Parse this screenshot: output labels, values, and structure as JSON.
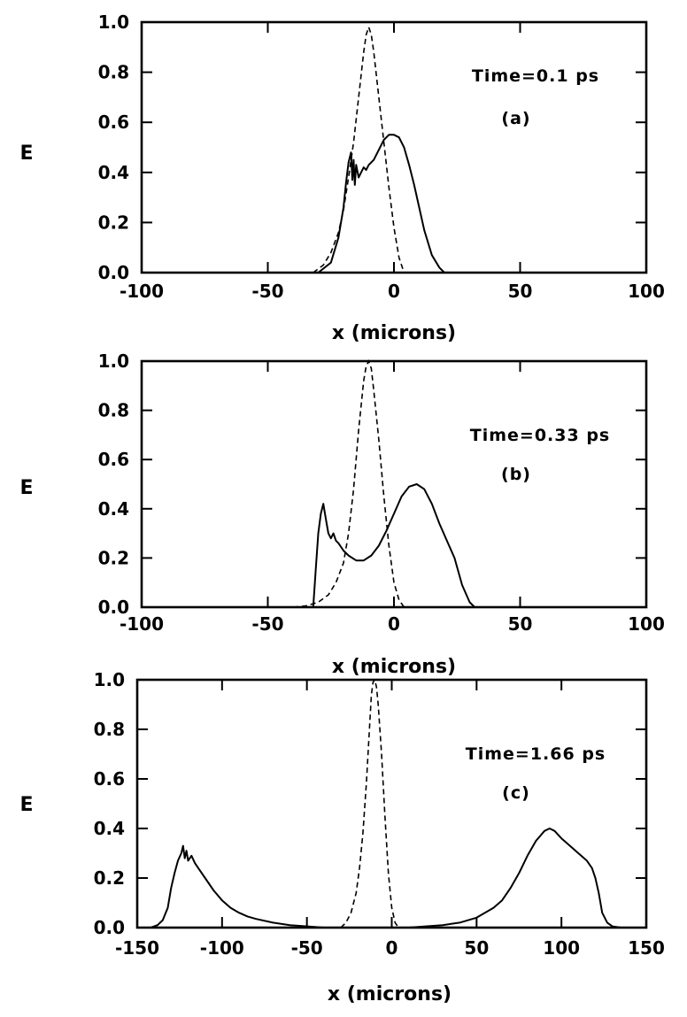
{
  "chart_data": [
    {
      "type": "line",
      "panel_label": "(a)",
      "annotation": "Time=0.1 ps",
      "xlabel": "x (microns)",
      "ylabel": "E",
      "xlim": [
        -100,
        100
      ],
      "ylim": [
        0,
        1.0
      ],
      "xticks": [
        -100,
        -50,
        0,
        50,
        100
      ],
      "xtick_labels": [
        "-100",
        "-50",
        "0",
        "50",
        "100"
      ],
      "yticks": [
        0,
        0.2,
        0.4,
        0.6,
        0.8,
        1.0
      ],
      "ytick_labels": [
        "0.0",
        "0.2",
        "0.4",
        "0.6",
        "0.8",
        "1.0"
      ],
      "grid": false,
      "series": [
        {
          "style": "dashed",
          "x": [
            -32,
            -28,
            -25,
            -22,
            -20,
            -18,
            -16,
            -14,
            -12,
            -11,
            -10,
            -9,
            -8,
            -6,
            -4,
            -2,
            0,
            2,
            4
          ],
          "y": [
            0.0,
            0.03,
            0.08,
            0.16,
            0.25,
            0.38,
            0.52,
            0.7,
            0.88,
            0.95,
            0.98,
            0.95,
            0.88,
            0.7,
            0.52,
            0.34,
            0.18,
            0.06,
            0.0
          ]
        },
        {
          "style": "solid",
          "x": [
            -30,
            -25,
            -22,
            -20,
            -19,
            -18,
            -17,
            -16.5,
            -16,
            -15.5,
            -15,
            -14,
            -13,
            -12,
            -11,
            -10,
            -8,
            -6,
            -4,
            -2,
            0,
            2,
            4,
            6,
            8,
            10,
            12,
            15,
            18,
            20
          ],
          "y": [
            0.0,
            0.04,
            0.14,
            0.26,
            0.36,
            0.44,
            0.48,
            0.37,
            0.45,
            0.35,
            0.43,
            0.38,
            0.4,
            0.42,
            0.41,
            0.43,
            0.45,
            0.49,
            0.53,
            0.55,
            0.55,
            0.54,
            0.5,
            0.43,
            0.35,
            0.26,
            0.17,
            0.07,
            0.02,
            0.0
          ]
        }
      ]
    },
    {
      "type": "line",
      "panel_label": "(b)",
      "annotation": "Time=0.33 ps",
      "xlabel": "x (microns)",
      "ylabel": "E",
      "xlim": [
        -100,
        100
      ],
      "ylim": [
        0,
        1.0
      ],
      "xticks": [
        -100,
        -50,
        0,
        50,
        100
      ],
      "xtick_labels": [
        "-100",
        "-50",
        "0",
        "50",
        "100"
      ],
      "yticks": [
        0,
        0.2,
        0.4,
        0.6,
        0.8,
        1.0
      ],
      "ytick_labels": [
        "0.0",
        "0.2",
        "0.4",
        "0.6",
        "0.8",
        "1.0"
      ],
      "grid": false,
      "series": [
        {
          "style": "dashed",
          "x": [
            -40,
            -35,
            -30,
            -26,
            -23,
            -20,
            -18,
            -16,
            -14,
            -12,
            -11,
            -10,
            -9,
            -8,
            -6,
            -4,
            -2,
            0,
            2,
            4
          ],
          "y": [
            0.0,
            0.005,
            0.02,
            0.05,
            0.1,
            0.18,
            0.3,
            0.48,
            0.72,
            0.92,
            0.98,
            1.0,
            0.97,
            0.88,
            0.68,
            0.45,
            0.25,
            0.1,
            0.03,
            0.0
          ]
        },
        {
          "style": "solid",
          "x": [
            -32,
            -31,
            -30,
            -29,
            -28,
            -27,
            -26,
            -25,
            -24,
            -23,
            -22,
            -20,
            -18,
            -15,
            -12,
            -9,
            -6,
            -3,
            0,
            3,
            6,
            9,
            12,
            15,
            18,
            21,
            24,
            27,
            30,
            32
          ],
          "y": [
            0.0,
            0.15,
            0.3,
            0.38,
            0.42,
            0.36,
            0.3,
            0.28,
            0.3,
            0.27,
            0.26,
            0.23,
            0.21,
            0.19,
            0.19,
            0.21,
            0.25,
            0.31,
            0.38,
            0.45,
            0.49,
            0.5,
            0.48,
            0.42,
            0.34,
            0.27,
            0.2,
            0.09,
            0.02,
            0.0
          ]
        }
      ]
    },
    {
      "type": "line",
      "panel_label": "(c)",
      "annotation": "Time=1.66 ps",
      "xlabel": "x (microns)",
      "ylabel": "E",
      "xlim": [
        -150,
        150
      ],
      "ylim": [
        0,
        1.0
      ],
      "xticks": [
        -150,
        -100,
        -50,
        0,
        50,
        100,
        150
      ],
      "xtick_labels": [
        "-150",
        "-100",
        "-50",
        "0",
        "50",
        "100",
        "150"
      ],
      "yticks": [
        0,
        0.2,
        0.4,
        0.6,
        0.8,
        1.0
      ],
      "ytick_labels": [
        "0.0",
        "0.2",
        "0.4",
        "0.6",
        "0.8",
        "1.0"
      ],
      "grid": false,
      "series": [
        {
          "style": "dashed",
          "x": [
            -30,
            -27,
            -24,
            -21,
            -19,
            -17,
            -15,
            -13,
            -12,
            -11,
            -10,
            -9,
            -8,
            -6,
            -4,
            -2,
            0,
            2,
            4
          ],
          "y": [
            0.0,
            0.02,
            0.06,
            0.14,
            0.24,
            0.38,
            0.58,
            0.82,
            0.94,
            0.99,
            1.0,
            0.97,
            0.9,
            0.7,
            0.45,
            0.22,
            0.08,
            0.02,
            0.0
          ]
        },
        {
          "style": "solid",
          "x": [
            -142,
            -138,
            -135,
            -132,
            -130,
            -128,
            -126,
            -124,
            -123,
            -122,
            -121,
            -120,
            -118,
            -116,
            -114,
            -110,
            -105,
            -100,
            -95,
            -90,
            -85,
            -80,
            -70,
            -60,
            -50,
            -40,
            -30,
            -20,
            -10,
            0,
            10,
            20,
            30,
            40,
            50,
            60,
            65,
            70,
            75,
            80,
            85,
            90,
            93,
            96,
            100,
            105,
            110,
            115,
            118,
            120,
            122,
            124,
            127,
            130,
            135
          ],
          "y": [
            0.0,
            0.01,
            0.03,
            0.08,
            0.16,
            0.22,
            0.27,
            0.3,
            0.33,
            0.28,
            0.31,
            0.27,
            0.29,
            0.26,
            0.24,
            0.2,
            0.15,
            0.11,
            0.08,
            0.06,
            0.045,
            0.035,
            0.02,
            0.01,
            0.005,
            0.0,
            0.0,
            0.0,
            0.0,
            0.0,
            0.0,
            0.005,
            0.01,
            0.02,
            0.04,
            0.08,
            0.11,
            0.16,
            0.22,
            0.29,
            0.35,
            0.39,
            0.4,
            0.39,
            0.36,
            0.33,
            0.3,
            0.27,
            0.24,
            0.2,
            0.14,
            0.06,
            0.02,
            0.005,
            0.0
          ]
        }
      ]
    }
  ]
}
